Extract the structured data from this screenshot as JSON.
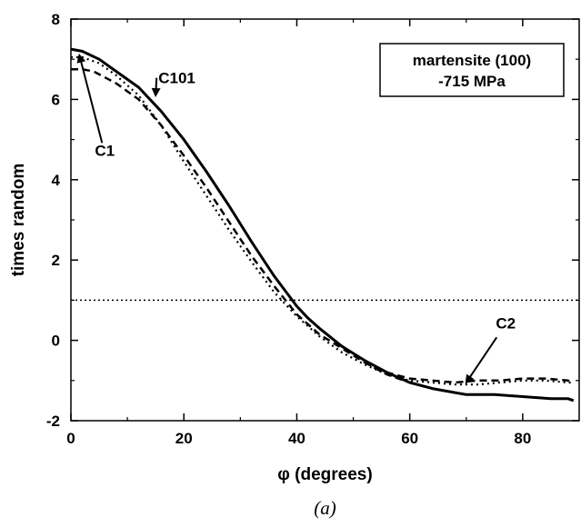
{
  "chart_data": {
    "type": "line",
    "xlabel": "φ (degrees)",
    "ylabel": "times random",
    "xlim": [
      0,
      90
    ],
    "ylim": [
      -2,
      8
    ],
    "xticks": [
      "0",
      "20",
      "40",
      "60",
      "80"
    ],
    "yticks": [
      "-2",
      "0",
      "2",
      "4",
      "6",
      "8"
    ],
    "legend_box": {
      "line1": "martensite (100)",
      "line2": "-715 MPa",
      "placement": "top-right"
    },
    "caption": "(a)",
    "reference_line": {
      "y": 1,
      "style": "dotted"
    },
    "annotations": [
      {
        "text": "C101",
        "target": [
          15,
          6.1
        ],
        "label_at": [
          20,
          6.4
        ]
      },
      {
        "text": "C1",
        "target": [
          1.5,
          7.1
        ],
        "label_at": [
          6,
          4.6
        ]
      },
      {
        "text": "C2",
        "target": [
          70,
          -1.05
        ],
        "label_at": [
          77,
          0.3
        ]
      }
    ],
    "series": [
      {
        "style": "solid",
        "x": [
          0,
          2,
          5,
          8,
          12,
          16,
          20,
          24,
          28,
          32,
          36,
          40,
          42,
          44,
          48,
          52,
          56,
          60,
          64,
          66,
          70,
          75,
          80,
          85,
          88,
          89
        ],
        "y": [
          7.25,
          7.2,
          7.0,
          6.7,
          6.3,
          5.7,
          5.0,
          4.2,
          3.35,
          2.45,
          1.6,
          0.85,
          0.55,
          0.3,
          -0.15,
          -0.5,
          -0.8,
          -1.05,
          -1.2,
          -1.25,
          -1.35,
          -1.35,
          -1.4,
          -1.45,
          -1.45,
          -1.5
        ]
      },
      {
        "style": "dashed",
        "x": [
          0,
          2,
          4,
          8,
          12,
          16,
          20,
          24,
          28,
          32,
          36,
          40,
          44,
          48,
          52,
          56,
          60,
          64,
          66
        ],
        "y": [
          6.75,
          6.75,
          6.7,
          6.4,
          6.0,
          5.35,
          4.6,
          3.8,
          2.95,
          2.1,
          1.35,
          0.65,
          0.15,
          -0.2,
          -0.55,
          -0.85,
          -1.05,
          -1.2,
          -1.25
        ]
      },
      {
        "style": "dotted",
        "x": [
          0,
          2,
          5,
          8,
          12,
          16,
          20,
          24,
          28,
          32,
          36,
          40,
          44,
          48,
          52,
          56,
          60,
          64,
          68,
          72,
          76,
          80,
          84,
          88,
          89
        ],
        "y": [
          7.05,
          7.05,
          6.9,
          6.6,
          6.1,
          5.35,
          4.45,
          3.6,
          2.75,
          1.95,
          1.2,
          0.6,
          0.1,
          -0.3,
          -0.6,
          -0.85,
          -1.0,
          -1.05,
          -1.1,
          -1.1,
          -1.05,
          -1.0,
          -1.0,
          -1.05,
          -1.05
        ]
      },
      {
        "style": "dashed",
        "x": [
          52,
          56,
          60,
          64,
          68,
          72,
          76,
          80,
          84,
          88,
          89
        ],
        "y": [
          -0.55,
          -0.8,
          -0.95,
          -1.0,
          -1.05,
          -1.0,
          -1.0,
          -0.95,
          -0.95,
          -1.0,
          -1.05
        ]
      }
    ]
  }
}
